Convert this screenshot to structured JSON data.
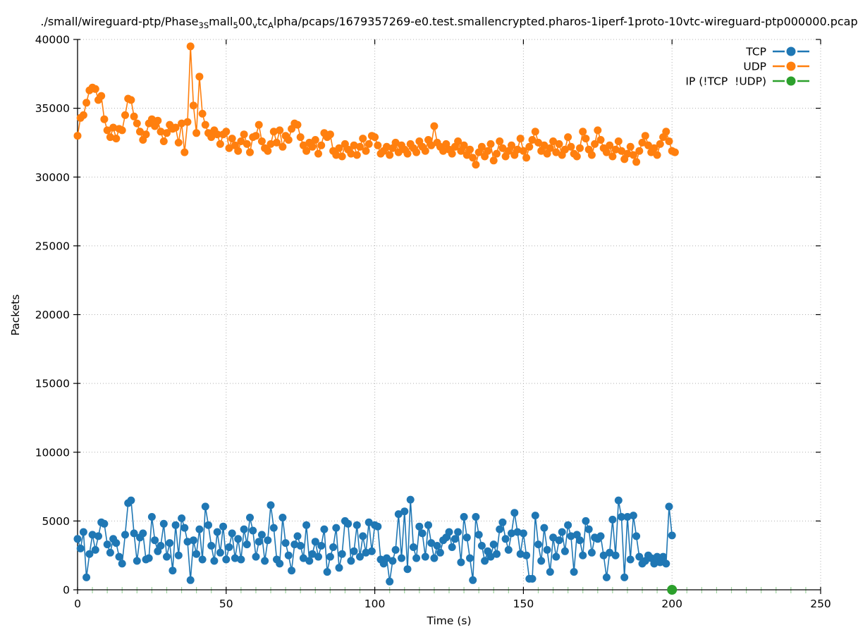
{
  "title": {
    "text": "./small/wireguard-ptp/Phase_3_Small_500_vtc_Alpha/pcaps/1679357269-e0.test.smallencrypted.pharos-1iperf-1proto-10vtc-wireguard-ptp000000.pcap",
    "segments": [
      {
        "text": "./small/wireguard-ptp/Phase",
        "sub": false
      },
      {
        "text": "3",
        "sub": true
      },
      {
        "text": "S",
        "sub": true
      },
      {
        "text": "mall",
        "sub": false
      },
      {
        "text": "5",
        "sub": true
      },
      {
        "text": "00",
        "sub": false
      },
      {
        "text": "v",
        "sub": true
      },
      {
        "text": "tc",
        "sub": false
      },
      {
        "text": "A",
        "sub": true
      },
      {
        "text": "lpha/pcaps/1679357269-e0.test.smallencrypted.pharos-1iperf-1proto-10vtc-wireguard-ptp000000.pcap",
        "sub": false
      }
    ]
  },
  "colors": {
    "tcp": "#1f77b4",
    "udp": "#ff7f0e",
    "ip_other": "#2ca02c",
    "grid": "#b0b0b0",
    "axis": "#000000",
    "minor_tick": "#9fd49f"
  },
  "chart_data": {
    "type": "line",
    "style": "linespoints",
    "title": "./small/wireguard-ptp/Phase_3_Small_500_vtc_Alpha/pcaps/1679357269-e0.test.smallencrypted.pharos-1iperf-1proto-10vtc-wireguard-ptp000000.pcap",
    "xlabel": "Time (s)",
    "ylabel": "Packets",
    "xlim": [
      0,
      250
    ],
    "ylim": [
      0,
      40000
    ],
    "xticks": [
      0,
      50,
      100,
      150,
      200,
      250
    ],
    "yticks": [
      0,
      5000,
      10000,
      15000,
      20000,
      25000,
      30000,
      35000,
      40000
    ],
    "x_tick_labels": [
      "0",
      "50",
      "100",
      "150",
      "200",
      "250"
    ],
    "y_tick_labels": [
      "0",
      "5000",
      "10000",
      "15000",
      "20000",
      "25000",
      "30000",
      "35000",
      "40000"
    ],
    "minor_xtick_step": 5,
    "grid": "dotted",
    "legend": {
      "position": "top-right",
      "entries": [
        "TCP",
        "UDP",
        "IP (!TCP  !UDP)"
      ]
    },
    "series": [
      {
        "name": "TCP",
        "color": "#1f77b4",
        "marker": "circle",
        "marker_radius": 5.5,
        "x0": 0,
        "dx": 1,
        "y": [
          3700,
          3000,
          4200,
          900,
          2600,
          4000,
          2900,
          3900,
          4900,
          4800,
          3300,
          2700,
          3700,
          3400,
          2400,
          1900,
          4000,
          6300,
          6500,
          4100,
          2100,
          3800,
          4100,
          2200,
          2300,
          5300,
          3600,
          2800,
          3200,
          4800,
          2400,
          3400,
          1400,
          4700,
          2500,
          5200,
          4500,
          3500,
          700,
          3600,
          2600,
          4400,
          2200,
          6050,
          4700,
          3200,
          2100,
          4200,
          2700,
          4600,
          2200,
          3100,
          4100,
          2300,
          3700,
          2200,
          4400,
          3300,
          5250,
          4300,
          2400,
          3500,
          4000,
          2100,
          3600,
          6150,
          4500,
          2200,
          1900,
          5250,
          3400,
          2500,
          1400,
          3300,
          3900,
          3200,
          2300,
          4700,
          2100,
          2600,
          3500,
          2400,
          3200,
          4400,
          1300,
          2400,
          3100,
          4500,
          1600,
          2600,
          5000,
          4800,
          2100,
          2800,
          4700,
          2400,
          3900,
          2700,
          4900,
          2800,
          4700,
          4600,
          2200,
          1900,
          2300,
          600,
          2100,
          2900,
          5500,
          2300,
          5700,
          1500,
          6550,
          3100,
          2300,
          4600,
          4100,
          2400,
          4700,
          3400,
          2300,
          3200,
          2700,
          3600,
          3800,
          4200,
          3100,
          3700,
          4200,
          2000,
          5300,
          3800,
          2300,
          700,
          5300,
          4000,
          3200,
          2100,
          2800,
          2400,
          3300,
          2600,
          4400,
          4900,
          3700,
          2900,
          4100,
          5600,
          4200,
          2600,
          4100,
          2500,
          800,
          800,
          5400,
          3300,
          2100,
          4500,
          2900,
          1300,
          3800,
          2400,
          3600,
          4200,
          2800,
          4700,
          3900,
          1300,
          4000,
          3600,
          2500,
          5000,
          4400,
          2700,
          3800,
          3700,
          3900,
          2500,
          900,
          2700,
          5100,
          2500,
          6500,
          5300,
          900,
          5300,
          2200,
          5400,
          3900,
          2400,
          1900,
          2100,
          2500,
          2300,
          1900,
          2400,
          2000,
          2400,
          1900,
          6050,
          3950
        ]
      },
      {
        "name": "UDP",
        "color": "#ff7f0e",
        "marker": "circle",
        "marker_radius": 5.5,
        "x0": 0,
        "dx": 1,
        "y": [
          33000,
          34300,
          34500,
          35400,
          36300,
          36500,
          36400,
          35600,
          35900,
          34200,
          33400,
          32900,
          33600,
          32800,
          33500,
          33400,
          34500,
          35700,
          35600,
          34400,
          33900,
          33300,
          32700,
          33100,
          33900,
          34200,
          33700,
          34100,
          33300,
          32600,
          33200,
          33800,
          33500,
          33600,
          32500,
          33900,
          31800,
          34000,
          39500,
          35200,
          33200,
          37300,
          34600,
          33800,
          33200,
          32900,
          33400,
          33100,
          32400,
          33100,
          33300,
          32100,
          32800,
          32300,
          31900,
          32600,
          33100,
          32400,
          31800,
          32900,
          33000,
          33800,
          32600,
          32100,
          31900,
          32400,
          33300,
          32500,
          33400,
          32200,
          33000,
          32700,
          33500,
          33900,
          33800,
          32900,
          32300,
          31900,
          32500,
          32200,
          32700,
          31700,
          32300,
          33200,
          32900,
          33100,
          31900,
          31600,
          32100,
          31500,
          32400,
          32000,
          31700,
          32300,
          31600,
          32200,
          32800,
          31900,
          32400,
          33000,
          32900,
          32300,
          31700,
          31900,
          32200,
          31600,
          32100,
          32500,
          31800,
          32300,
          32000,
          31700,
          32400,
          32100,
          31800,
          32600,
          32200,
          31900,
          32700,
          32300,
          33700,
          32500,
          32200,
          31900,
          32400,
          32000,
          31700,
          32200,
          32600,
          31900,
          32300,
          31600,
          32000,
          31400,
          30900,
          31800,
          32200,
          31500,
          31900,
          32400,
          31200,
          31700,
          32600,
          32100,
          31500,
          31900,
          32300,
          31600,
          32000,
          32800,
          31900,
          31400,
          32200,
          32700,
          33300,
          32500,
          31900,
          32300,
          31700,
          32100,
          32600,
          31800,
          32400,
          31600,
          32000,
          32900,
          32200,
          31700,
          31500,
          32100,
          33300,
          32800,
          32000,
          31600,
          32400,
          33400,
          32700,
          32100,
          31800,
          32300,
          31500,
          32000,
          32600,
          31900,
          31300,
          31700,
          32200,
          31600,
          31100,
          31900,
          32500,
          33000,
          32300,
          31800,
          32100,
          31600,
          32400,
          32900,
          33300,
          32600,
          31900,
          31800
        ]
      },
      {
        "name": "IP (!TCP  !UDP)",
        "color": "#2ca02c",
        "marker": "circle",
        "marker_radius": 7,
        "x": [
          200
        ],
        "y": [
          0
        ]
      }
    ]
  }
}
